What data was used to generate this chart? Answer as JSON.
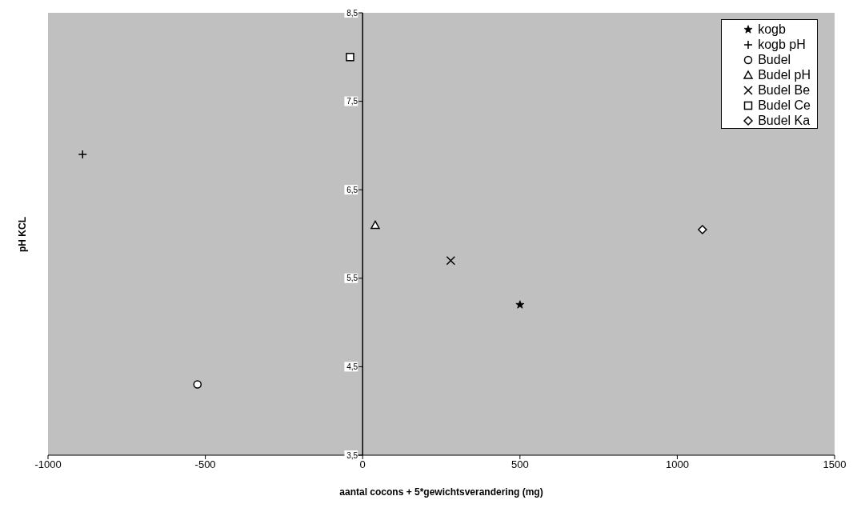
{
  "chart_data": {
    "type": "scatter",
    "xlabel": "aantal cocons + 5*gewichtsverandering (mg)",
    "ylabel": "pH KCL",
    "xlim": [
      -1000,
      1500
    ],
    "xticks": [
      -1000,
      -500,
      0,
      500,
      1000,
      1500
    ],
    "ylim": [
      3.5,
      8.5
    ],
    "yticks": [
      {
        "value": 3.5,
        "label": "3,5"
      },
      {
        "value": 4.5,
        "label": "4,5"
      },
      {
        "value": 5.5,
        "label": "5,5"
      },
      {
        "value": 6.5,
        "label": "6,5"
      },
      {
        "value": 7.5,
        "label": "7,5"
      },
      {
        "value": 8.5,
        "label": "8,5"
      }
    ],
    "grid": false,
    "legend": "top right",
    "series": [
      {
        "name": "kogb",
        "color": "#000000",
        "marker": "star",
        "x": [
          500
        ],
        "values": [
          5.2
        ]
      },
      {
        "name": "kogb pH",
        "color": "#000000",
        "marker": "plus",
        "x": [
          -890
        ],
        "values": [
          6.9
        ]
      },
      {
        "name": "Budel",
        "color": "#000000",
        "marker": "circle",
        "x": [
          -525
        ],
        "values": [
          4.3
        ]
      },
      {
        "name": "Budel pH",
        "color": "#000000",
        "marker": "triangle",
        "x": [
          40
        ],
        "values": [
          6.1
        ]
      },
      {
        "name": "Budel Be",
        "color": "#000000",
        "marker": "cross",
        "x": [
          280
        ],
        "values": [
          5.7
        ]
      },
      {
        "name": "Budel Ce",
        "color": "#000000",
        "marker": "square",
        "x": [
          -40
        ],
        "values": [
          8.0
        ]
      },
      {
        "name": "Budel Ka",
        "color": "#000000",
        "marker": "diamond",
        "x": [
          1080
        ],
        "values": [
          6.05
        ]
      }
    ]
  }
}
